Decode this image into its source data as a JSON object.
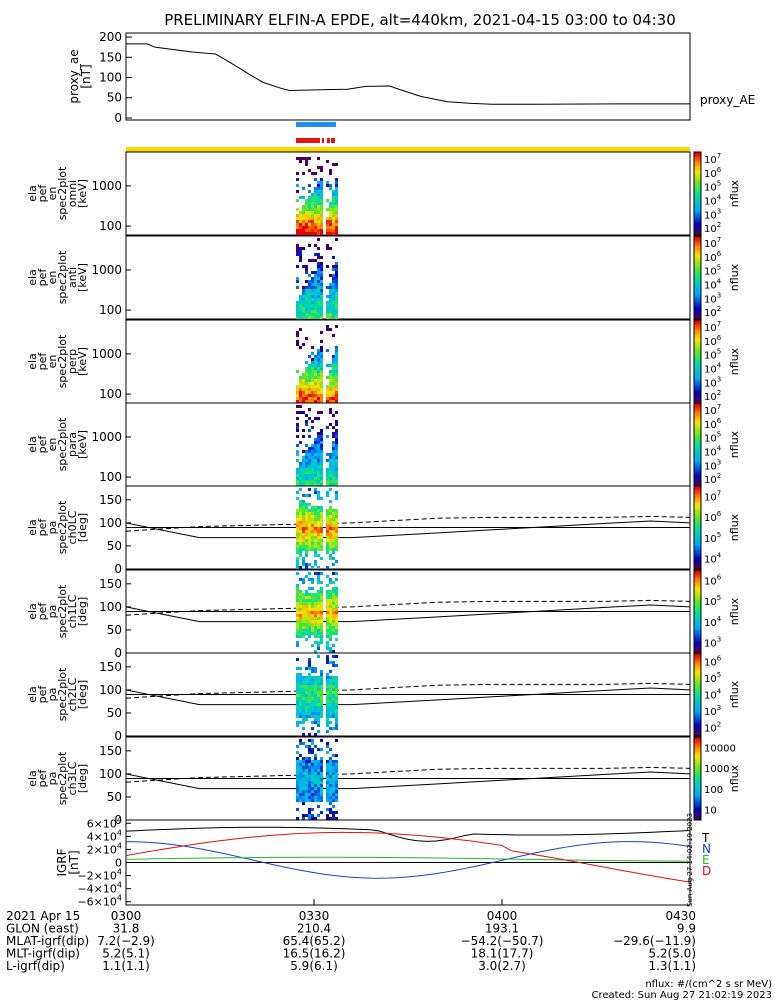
{
  "title": "PRELIMINARY ELFIN-A EPDE, alt=440km, 2021-04-15 03:00 to 04:30",
  "colors": {
    "background": "#ffffff",
    "bar_blue": "#1c8ff0",
    "bar_red": "#e8140c",
    "bar_yellow": "#f5d800"
  },
  "chart_data": [
    {
      "type": "line",
      "id": "proxy_ae",
      "ylabel": "proxy_ae\n[nT]",
      "legend": "proxy_AE",
      "legend_placement": "right",
      "ylim": [
        -5,
        210
      ],
      "yticks": [
        0,
        50,
        100,
        150,
        200
      ],
      "x_minutes": [
        0,
        8,
        11,
        25,
        34,
        40,
        47,
        52,
        59,
        62,
        76,
        84,
        91,
        100,
        104,
        112,
        122,
        131,
        139,
        155,
        187,
        214
      ],
      "values": [
        183,
        183,
        175,
        163,
        158,
        135,
        107,
        88,
        73,
        68,
        70,
        71,
        78,
        79,
        70,
        53,
        40,
        36,
        34,
        34,
        35,
        35
      ]
    },
    {
      "type": "heatmap",
      "id": "omni",
      "ylabel": [
        "ela",
        "pef",
        "en",
        "spec2plot",
        "omni",
        "[keV]"
      ],
      "log_y": true,
      "ylim_keV": [
        60,
        7000
      ],
      "yticks": [
        100,
        1000
      ],
      "colorbar": {
        "label": "nflux",
        "ticks": [
          "10^2",
          "10^3",
          "10^4",
          "10^5",
          "10^6",
          "10^7"
        ]
      }
    },
    {
      "type": "heatmap",
      "id": "anti",
      "ylabel": [
        "ela",
        "pef",
        "en",
        "spec2plot",
        "anti",
        "[keV]"
      ],
      "log_y": true,
      "ylim_keV": [
        60,
        7000
      ],
      "yticks": [
        100,
        1000
      ],
      "colorbar": {
        "label": "nflux",
        "ticks": [
          "10^2",
          "10^3",
          "10^4",
          "10^5",
          "10^6",
          "10^7"
        ]
      }
    },
    {
      "type": "heatmap",
      "id": "perp",
      "ylabel": [
        "ela",
        "pef",
        "en",
        "spec2plot",
        "perp",
        "[keV]"
      ],
      "log_y": true,
      "ylim_keV": [
        60,
        7000
      ],
      "yticks": [
        100,
        1000
      ],
      "colorbar": {
        "label": "nflux",
        "ticks": [
          "10^2",
          "10^3",
          "10^4",
          "10^5",
          "10^6",
          "10^7"
        ]
      }
    },
    {
      "type": "heatmap",
      "id": "para",
      "ylabel": [
        "ela",
        "pef",
        "en",
        "spec2plot",
        "para",
        "[keV]"
      ],
      "log_y": true,
      "ylim_keV": [
        60,
        7000
      ],
      "yticks": [
        100,
        1000
      ],
      "colorbar": {
        "label": "nflux",
        "ticks": [
          "10^2",
          "10^3",
          "10^4",
          "10^5",
          "10^6",
          "10^7"
        ]
      }
    },
    {
      "type": "heatmap",
      "id": "ch0LC",
      "ylabel": [
        "ela",
        "pef",
        "pa",
        "spec2plot",
        "ch0LC",
        "[deg]"
      ],
      "ylim": [
        0,
        180
      ],
      "yticks": [
        0,
        50,
        100,
        150
      ],
      "colorbar": {
        "label": "nflux",
        "ticks": [
          "10^4",
          "10^5",
          "10^6",
          "10^7"
        ]
      }
    },
    {
      "type": "heatmap",
      "id": "ch1LC",
      "ylabel": [
        "ela",
        "pef",
        "pa",
        "spec2plot",
        "ch1LC",
        "[deg]"
      ],
      "ylim": [
        0,
        180
      ],
      "yticks": [
        0,
        50,
        100,
        150
      ],
      "colorbar": {
        "label": "nflux",
        "ticks": [
          "10^3",
          "10^4",
          "10^5",
          "10^6"
        ]
      }
    },
    {
      "type": "heatmap",
      "id": "ch2LC",
      "ylabel": [
        "ela",
        "pef",
        "pa",
        "spec2plot",
        "ch2LC",
        "[deg]"
      ],
      "ylim": [
        0,
        180
      ],
      "yticks": [
        0,
        50,
        100,
        150
      ],
      "colorbar": {
        "label": "nflux",
        "ticks": [
          "10^2",
          "10^3",
          "10^4",
          "10^5",
          "10^6"
        ]
      }
    },
    {
      "type": "heatmap",
      "id": "ch3LC",
      "ylabel": [
        "ela",
        "pef",
        "pa",
        "spec2plot",
        "ch3LC",
        "[deg]"
      ],
      "ylim": [
        0,
        180
      ],
      "yticks": [
        0,
        50,
        100,
        150
      ],
      "colorbar": {
        "label": "nflux",
        "ticks": [
          "10",
          "100",
          "1000",
          "10000"
        ]
      }
    },
    {
      "type": "line",
      "id": "igrf",
      "ylabel": "IGRF\n[nT]",
      "ylim": [
        -65000,
        65000
      ],
      "yticks": [
        "6×10^4",
        "4×10^4",
        "2×10^4",
        "0",
        "−2×10^4",
        "−4×10^4",
        "−6×10^4"
      ],
      "series": [
        {
          "name": "T",
          "color": "#000000"
        },
        {
          "name": "N",
          "color": "#1c3ce0"
        },
        {
          "name": "E",
          "color": "#2fb42f"
        },
        {
          "name": "D",
          "color": "#e01010"
        }
      ]
    }
  ],
  "overlays": {
    "lc_deg_solid": [
      100,
      68,
      68,
      78,
      85,
      92,
      99,
      104,
      100
    ],
    "lc_deg_dashed": [
      82,
      92,
      100,
      110,
      112,
      112,
      112,
      114,
      112
    ],
    "x_frac": [
      0,
      0.13,
      0.4,
      0.55,
      0.65,
      0.75,
      0.85,
      0.93,
      1
    ]
  },
  "side_stamp": "Sun Aug 27 14:02:19 2023",
  "x_axis": {
    "rows": [
      {
        "label": "2021 Apr 15",
        "values": [
          "0300",
          "0330",
          "0400",
          "0430"
        ]
      },
      {
        "label": "GLON (east)",
        "values": [
          "31.8",
          "210.4",
          "193.1",
          "9.9"
        ]
      },
      {
        "label": "MLAT-igrf(dip)",
        "values": [
          "7.2(−2.9)",
          "65.4(65.2)",
          "−54.2(−50.7)",
          "−29.6(−11.9)"
        ]
      },
      {
        "label": "MLT-igrf(dip)",
        "values": [
          "5.2(5.1)",
          "16.5(16.2)",
          "18.1(17.7)",
          "5.2(5.0)"
        ]
      },
      {
        "label": "L-igrf(dip)",
        "values": [
          "1.1(1.1)",
          "5.9(6.1)",
          "3.0(2.7)",
          "1.3(1.1)"
        ]
      }
    ]
  },
  "footer": {
    "units": "nflux: #/(cm^2 s sr MeV)",
    "created": "Created: Sun Aug 27 21:02:19 2023"
  }
}
